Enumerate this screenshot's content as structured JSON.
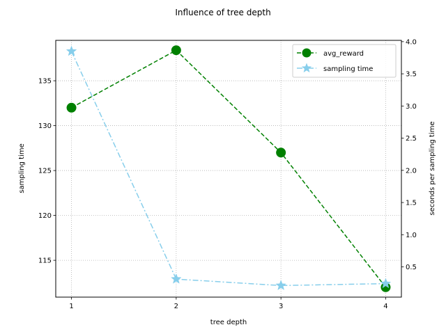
{
  "chart_data": {
    "type": "line",
    "title": "Influence of tree depth",
    "xlabel": "tree depth",
    "ylabel_left": "sampling time",
    "ylabel_right": "seconds per sampling time",
    "x": [
      1,
      2,
      3,
      4
    ],
    "xlim": [
      0.85,
      4.15
    ],
    "xticks": [
      "1",
      "2",
      "3",
      "4"
    ],
    "ylim_left": [
      110.9,
      139.5
    ],
    "yticks_left": [
      "115",
      "120",
      "125",
      "130",
      "135"
    ],
    "ylim_right": [
      0.03,
      4.02
    ],
    "yticks_right": [
      "0.5",
      "1.0",
      "1.5",
      "2.0",
      "2.5",
      "3.0",
      "3.5",
      "4.0"
    ],
    "grid": true,
    "legend_position": "top-right",
    "series": [
      {
        "name": "avg_reward",
        "axis": "left",
        "color": "#008000",
        "line_style": "dashed",
        "marker": "circle",
        "values": [
          132.0,
          138.4,
          127.0,
          112.0
        ]
      },
      {
        "name": "sampling time",
        "axis": "right",
        "color": "#87ceeb",
        "line_style": "dashdot",
        "marker": "star",
        "values": [
          3.85,
          0.31,
          0.21,
          0.24
        ]
      }
    ]
  }
}
